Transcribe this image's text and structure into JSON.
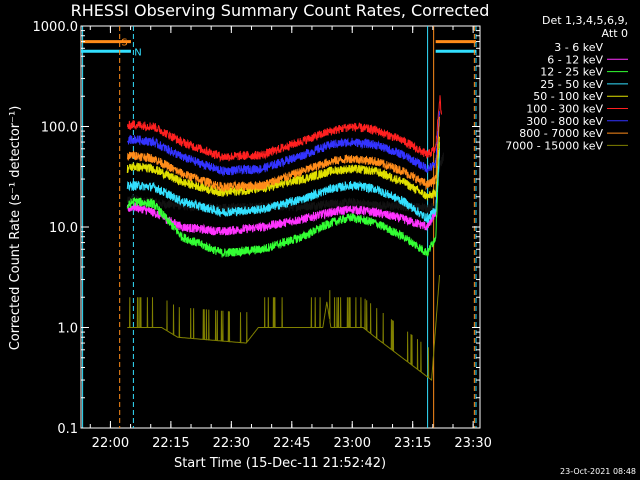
{
  "chart_data": {
    "type": "line",
    "title": "RHESSI Observing Summary Count Rates, Corrected",
    "xlabel": "Start Time (15-Dec-11 21:52:42)",
    "ylabel": "Corrected Count Rate (s⁻¹ detector⁻¹)",
    "ylog": true,
    "xlim_minutes_after_start": [
      0,
      99
    ],
    "ylim": [
      0.1,
      1000
    ],
    "xticks": [
      "22:00",
      "22:15",
      "22:30",
      "22:45",
      "23:00",
      "23:15",
      "23:30"
    ],
    "xtick_minutes": [
      7.3,
      22.3,
      37.3,
      52.3,
      67.3,
      82.3,
      97.3
    ],
    "yticks": [
      "0.1",
      "1.0",
      "10.0",
      "100.0",
      "1000.0"
    ],
    "ytick_values": [
      0.1,
      1,
      10,
      100,
      1000
    ],
    "legend_header": [
      "Det 1,3,4,5,6,9,",
      "Att 0"
    ],
    "legend_position": "right",
    "footer": "23-Oct-2021 08:48",
    "flags": [
      {
        "label": "S",
        "color": "#ff8c1a",
        "value": 700
      },
      {
        "label": "N",
        "color": "#33e0ff",
        "value": 560
      }
    ],
    "vlines_minutes": [
      {
        "t": 0.4,
        "color": "#33e0ff",
        "dash": false
      },
      {
        "t": 9.6,
        "color": "#ff8c1a",
        "dash": true
      },
      {
        "t": 13.0,
        "color": "#33e0ff",
        "dash": true
      },
      {
        "t": 86.0,
        "color": "#33e0ff",
        "dash": false
      },
      {
        "t": 87.5,
        "color": "#ff8c1a",
        "dash": false
      },
      {
        "t": 98.0,
        "color": "#33e0ff",
        "dash": true
      },
      {
        "t": 97.6,
        "color": "#ff8c1a",
        "dash": true
      }
    ],
    "series": [
      {
        "name": "3 - 6 keV",
        "color": "#111111",
        "legend_color": "#000000",
        "points": [
          [
            11.5,
            18
          ],
          [
            13,
            19
          ],
          [
            20,
            17
          ],
          [
            27,
            16
          ],
          [
            35,
            15.5
          ],
          [
            45,
            16
          ],
          [
            55,
            16
          ],
          [
            62,
            17
          ],
          [
            67,
            17.5
          ],
          [
            73,
            16.5
          ],
          [
            80,
            16
          ],
          [
            86,
            15.5
          ],
          [
            88,
            16
          ],
          [
            89,
            40
          ],
          [
            90,
            50
          ]
        ]
      },
      {
        "name": "6 - 12 keV",
        "color": "#ff33ff",
        "points": [
          [
            11.5,
            15
          ],
          [
            13,
            16
          ],
          [
            18,
            14
          ],
          [
            25,
            10
          ],
          [
            35,
            9
          ],
          [
            45,
            10
          ],
          [
            55,
            12
          ],
          [
            62,
            14
          ],
          [
            67,
            15
          ],
          [
            73,
            14
          ],
          [
            80,
            12
          ],
          [
            86,
            10
          ],
          [
            88,
            14
          ],
          [
            89,
            60
          ]
        ]
      },
      {
        "name": "12 - 25 keV",
        "color": "#33ff33",
        "points": [
          [
            11.5,
            16
          ],
          [
            13,
            18
          ],
          [
            18,
            17
          ],
          [
            25,
            8
          ],
          [
            35,
            5.5
          ],
          [
            45,
            6
          ],
          [
            55,
            8
          ],
          [
            62,
            11
          ],
          [
            67,
            12.5
          ],
          [
            73,
            11
          ],
          [
            80,
            8
          ],
          [
            86,
            5.5
          ],
          [
            88,
            8
          ],
          [
            89,
            70
          ]
        ]
      },
      {
        "name": "25 - 50 keV",
        "color": "#33e0ff",
        "points": [
          [
            11.5,
            25
          ],
          [
            13,
            26
          ],
          [
            18,
            25
          ],
          [
            25,
            18
          ],
          [
            35,
            14
          ],
          [
            45,
            15
          ],
          [
            55,
            19
          ],
          [
            62,
            24
          ],
          [
            67,
            26
          ],
          [
            73,
            24
          ],
          [
            80,
            18
          ],
          [
            86,
            12
          ],
          [
            88,
            15
          ],
          [
            89,
            60
          ]
        ]
      },
      {
        "name": "50 - 100 keV",
        "color": "#e0e000",
        "points": [
          [
            11.5,
            38
          ],
          [
            13,
            40
          ],
          [
            18,
            38
          ],
          [
            25,
            28
          ],
          [
            35,
            22
          ],
          [
            45,
            24
          ],
          [
            55,
            30
          ],
          [
            62,
            36
          ],
          [
            67,
            38
          ],
          [
            73,
            36
          ],
          [
            80,
            28
          ],
          [
            86,
            20
          ],
          [
            88,
            22
          ],
          [
            89,
            80
          ]
        ]
      },
      {
        "name": "100 - 300 keV",
        "color": "#ff2020",
        "points": [
          [
            11.5,
            100
          ],
          [
            13,
            105
          ],
          [
            18,
            100
          ],
          [
            25,
            70
          ],
          [
            35,
            50
          ],
          [
            45,
            52
          ],
          [
            55,
            72
          ],
          [
            62,
            90
          ],
          [
            67,
            100
          ],
          [
            73,
            92
          ],
          [
            80,
            72
          ],
          [
            86,
            52
          ],
          [
            88,
            60
          ],
          [
            89,
            200
          ],
          [
            89.5,
            120
          ]
        ]
      },
      {
        "name": "300 - 800 keV",
        "color": "#3333ff",
        "points": [
          [
            11.5,
            72
          ],
          [
            13,
            75
          ],
          [
            18,
            70
          ],
          [
            25,
            50
          ],
          [
            35,
            36
          ],
          [
            45,
            38
          ],
          [
            55,
            52
          ],
          [
            62,
            66
          ],
          [
            67,
            70
          ],
          [
            73,
            66
          ],
          [
            80,
            52
          ],
          [
            86,
            38
          ],
          [
            88,
            42
          ],
          [
            89,
            150
          ]
        ]
      },
      {
        "name": "800 - 7000 keV",
        "color": "#ff8c1a",
        "points": [
          [
            11.5,
            50
          ],
          [
            13,
            52
          ],
          [
            18,
            48
          ],
          [
            25,
            34
          ],
          [
            35,
            25
          ],
          [
            45,
            26
          ],
          [
            55,
            36
          ],
          [
            62,
            45
          ],
          [
            67,
            48
          ],
          [
            73,
            45
          ],
          [
            80,
            36
          ],
          [
            86,
            26
          ],
          [
            88,
            30
          ],
          [
            89,
            130
          ]
        ]
      },
      {
        "name": "7000 - 15000 keV",
        "color": "#808000",
        "points": [
          [
            11.5,
            1.0
          ],
          [
            20,
            1.0
          ],
          [
            24,
            0.8
          ],
          [
            41,
            0.7
          ],
          [
            44,
            1.0
          ],
          [
            60,
            1.0
          ],
          [
            61,
            1.8
          ],
          [
            62,
            1.0
          ],
          [
            70,
            1.0
          ],
          [
            73,
            0.8
          ],
          [
            87,
            0.3
          ],
          [
            89,
            3.5
          ]
        ]
      }
    ]
  }
}
